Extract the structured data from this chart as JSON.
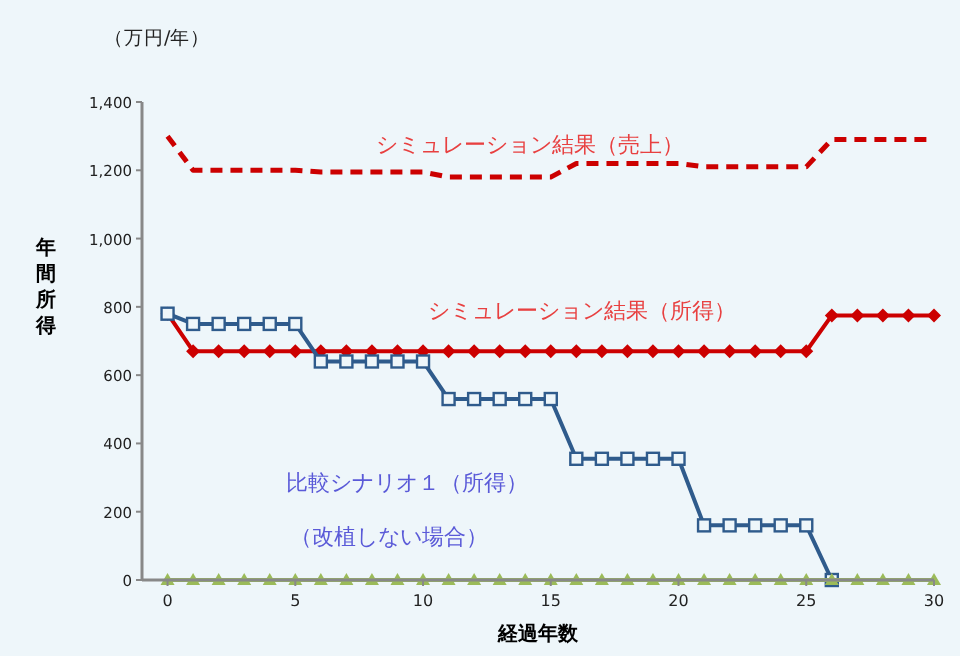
{
  "chart_data": {
    "type": "line",
    "xlabel": "経過年数",
    "ylabel": "年間所得",
    "annotations": [
      "（万円/年）",
      "（改植しない場合）"
    ],
    "x": [
      0,
      1,
      2,
      3,
      4,
      5,
      6,
      7,
      8,
      9,
      10,
      11,
      12,
      13,
      14,
      15,
      16,
      17,
      18,
      19,
      20,
      21,
      22,
      23,
      24,
      25,
      26,
      27,
      28,
      29,
      30
    ],
    "xlim": [
      -1,
      30
    ],
    "xticks": [
      0,
      5,
      10,
      15,
      20,
      25,
      30
    ],
    "ylim": [
      0,
      1400
    ],
    "yticks": [
      0,
      200,
      400,
      600,
      800,
      {
        "value": 1000,
        "label": "1,000"
      },
      {
        "value": 1200,
        "label": "1,200"
      },
      {
        "value": 1400,
        "label": "1,400"
      }
    ],
    "grid": false,
    "series": [
      {
        "name": "シミュレーション結果（売上）",
        "color": "#cc0000",
        "line_style": "dashed",
        "marker": "none",
        "values": [
          1300,
          1200,
          1200,
          1200,
          1200,
          1200,
          1195,
          1195,
          1195,
          1195,
          1195,
          1180,
          1180,
          1180,
          1180,
          1180,
          1220,
          1220,
          1220,
          1220,
          1220,
          1210,
          1210,
          1210,
          1210,
          1210,
          1290,
          1290,
          1290,
          1290,
          1290
        ]
      },
      {
        "name": "シミュレーション結果（所得）",
        "color": "#cc0000",
        "line_style": "solid",
        "marker": "diamond",
        "values": [
          780,
          670,
          670,
          670,
          670,
          670,
          670,
          670,
          670,
          670,
          670,
          670,
          670,
          670,
          670,
          670,
          670,
          670,
          670,
          670,
          670,
          670,
          670,
          670,
          670,
          670,
          775,
          775,
          775,
          775,
          775
        ]
      },
      {
        "name": "比較シナリオ１（所得）",
        "color": "#2f5b8c",
        "line_style": "solid",
        "marker": "square",
        "values": [
          780,
          750,
          750,
          750,
          750,
          750,
          640,
          640,
          640,
          640,
          640,
          530,
          530,
          530,
          530,
          530,
          355,
          355,
          355,
          355,
          355,
          160,
          160,
          160,
          160,
          160,
          0,
          null,
          null,
          null,
          null
        ]
      },
      {
        "color": "#9bbb59",
        "line_style": "solid",
        "marker": "triangle",
        "values": [
          0,
          0,
          0,
          0,
          0,
          0,
          0,
          0,
          0,
          0,
          0,
          0,
          0,
          0,
          0,
          0,
          0,
          0,
          0,
          0,
          0,
          0,
          0,
          0,
          0,
          0,
          0,
          0,
          0,
          0,
          0
        ]
      }
    ]
  }
}
